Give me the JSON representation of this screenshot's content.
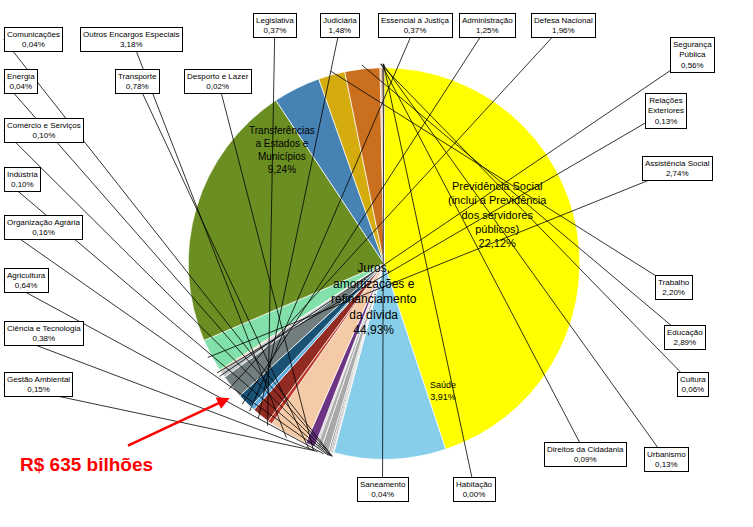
{
  "chart_data": {
    "type": "pie",
    "categories": [
      "Juros,\namortizações e\nrefinanciamento\nda dívida",
      "Transferências\na Estados e\nMunicípios",
      "Comunicações",
      "Energia",
      "Comércio e Serviços",
      "Indústria",
      "Organização Agrária",
      "Agricultura",
      "Ciência e Tecnologia",
      "Gestão Ambiental",
      "Desporto e Lazer",
      "Transporte",
      "Outros Encargos Especiais",
      "Legislativa",
      "Judiciária",
      "Essencial à Justiça",
      "Administração",
      "Defesa Nacional",
      "Segurança\nPública",
      "Relações\nExteriores",
      "Assistência Social",
      "Previdência Social\n(inclui a Previdência\ndos servidores\npúblicos)",
      "Saúde",
      "Trabalho",
      "Educação",
      "Cultura",
      "Direitos da Cidadania",
      "Urbanismo",
      "Habitação",
      "Saneamento"
    ],
    "values": [
      44.93,
      9.24,
      0.04,
      0.04,
      0.1,
      0.1,
      0.16,
      0.64,
      0.38,
      0.15,
      0.02,
      0.78,
      3.18,
      0.37,
      1.48,
      0.37,
      1.25,
      1.96,
      0.56,
      0.13,
      2.74,
      22.12,
      3.91,
      2.2,
      2.89,
      0.06,
      0.09,
      0.13,
      0.005,
      0.04
    ],
    "value_labels": [
      "44,93%",
      "9,24%",
      "0,04%",
      "0,04%",
      "0,10%",
      "0,10%",
      "0,16%",
      "0,64%",
      "0,38%",
      "0,15%",
      "0,02%",
      "0,78%",
      "3,18%",
      "0,37%",
      "1,48%",
      "0,37%",
      "1,25%",
      "1,96%",
      "0,56%",
      "0,13%",
      "2,74%",
      "22,12%",
      "3,91%",
      "2,20%",
      "2,89%",
      "0,06%",
      "0,09%",
      "0,13%",
      "0,00%",
      "0,04%"
    ],
    "colors": [
      "#FFFF00",
      "#87CEEB",
      "#808080",
      "#909090",
      "#787878",
      "#686868",
      "#989898",
      "#A8A8A8",
      "#B0B0B0",
      "#C0C0C0",
      "#9B59B6",
      "#6C3483",
      "#F5CBA7",
      "#C0392B",
      "#922B21",
      "#5DADE2",
      "#1A5276",
      "#717D7E",
      "#BDC3C7",
      "#F0B27A",
      "#82E0AA",
      "#6B8E23",
      "#4682B4",
      "#D4AC0D",
      "#CA6F1E",
      "#D35400",
      "#A04000",
      "#6E2F1A",
      "#784212",
      "#4A235A"
    ],
    "annotations": [
      {
        "text": "R$ 635 bilhões",
        "color": "#FF0000"
      }
    ]
  }
}
